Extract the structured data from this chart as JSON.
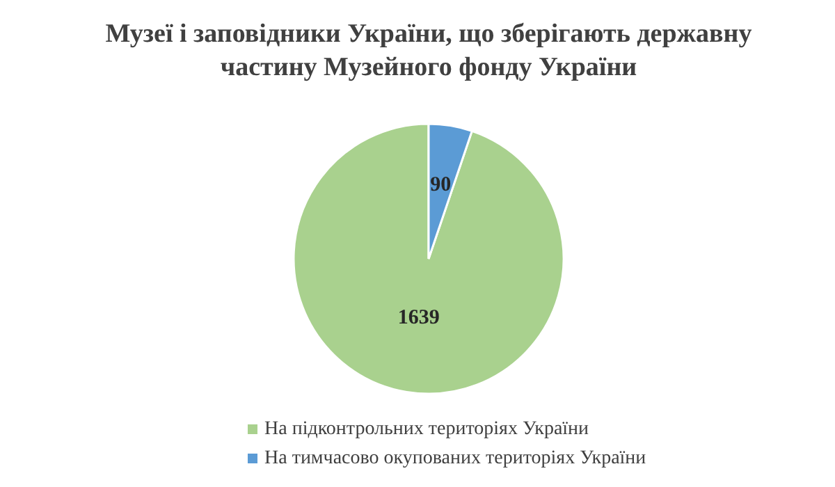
{
  "chart_data": {
    "type": "pie",
    "title": "Музеї і заповідники України, що зберігають державну частину Музейного фонду України",
    "categories": [
      "На підконтрольних територіях України",
      "На тимчасово окупованих територіях України"
    ],
    "values": [
      1639,
      90
    ],
    "colors": [
      "#a9d18e",
      "#5b9bd5"
    ],
    "data_labels": true,
    "legend": "bottom"
  }
}
